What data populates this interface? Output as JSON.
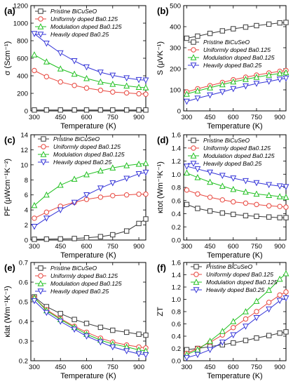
{
  "series_style": [
    {
      "color": "#3a3a3a",
      "marker": "square"
    },
    {
      "color": "#e8473f",
      "marker": "circle"
    },
    {
      "color": "#20c020",
      "marker": "triangle-up"
    },
    {
      "color": "#3535d8",
      "marker": "triangle-down"
    }
  ],
  "chart_data": [
    {
      "type": "line",
      "panel_label": "(a)",
      "ylabel": "σ (Scm⁻¹)",
      "xlabel": "Temperature (K)",
      "xlim": [
        280,
        940
      ],
      "ylim": [
        0,
        1200
      ],
      "xticks": [
        300,
        450,
        600,
        750,
        900
      ],
      "yticks": [
        0,
        200,
        400,
        600,
        800,
        1000,
        1200
      ],
      "legend_position": "top-right",
      "x": [
        300,
        370,
        450,
        530,
        600,
        680,
        750,
        830,
        900,
        940
      ],
      "series": [
        {
          "name": "Pristine BiCuSeO",
          "values": [
            10,
            10,
            10,
            10,
            10,
            10,
            10,
            10,
            10,
            10
          ]
        },
        {
          "name": "Uniformly doped Ba0.125",
          "values": [
            460,
            390,
            330,
            290,
            260,
            235,
            215,
            205,
            195,
            190
          ]
        },
        {
          "name": "Modulation doped Ba0.125",
          "values": [
            640,
            560,
            480,
            420,
            370,
            330,
            305,
            285,
            270,
            265
          ]
        },
        {
          "name": "Heavily doped Ba0.25",
          "values": [
            880,
            770,
            660,
            570,
            500,
            440,
            405,
            375,
            355,
            350
          ]
        }
      ]
    },
    {
      "type": "line",
      "panel_label": "(b)",
      "ylabel": "S (μVK⁻¹)",
      "xlabel": "Temperature (K)",
      "xlim": [
        280,
        940
      ],
      "ylim": [
        0,
        500
      ],
      "xticks": [
        300,
        450,
        600,
        750,
        900
      ],
      "yticks": [
        0,
        100,
        200,
        300,
        400,
        500
      ],
      "legend_position": "center-right",
      "x": [
        300,
        370,
        450,
        530,
        600,
        680,
        750,
        830,
        900,
        940
      ],
      "series": [
        {
          "name": "Pristine BiCuSeO",
          "values": [
            345,
            355,
            368,
            380,
            390,
            398,
            405,
            412,
            418,
            420
          ]
        },
        {
          "name": "Uniformly doped Ba0.125",
          "values": [
            90,
            105,
            120,
            135,
            148,
            160,
            170,
            180,
            188,
            192
          ]
        },
        {
          "name": "Modulation doped Ba0.125",
          "values": [
            80,
            95,
            110,
            125,
            138,
            150,
            160,
            170,
            178,
            182
          ]
        },
        {
          "name": "Heavily doped Ba0.25",
          "values": [
            45,
            60,
            75,
            90,
            105,
            118,
            130,
            140,
            150,
            155
          ]
        }
      ]
    },
    {
      "type": "line",
      "panel_label": "(c)",
      "ylabel": "PF (μWcm⁻¹K⁻²)",
      "xlabel": "Temperature (K)",
      "xlim": [
        280,
        940
      ],
      "ylim": [
        0,
        14
      ],
      "xticks": [
        300,
        450,
        600,
        750,
        900
      ],
      "yticks": [
        0,
        2,
        4,
        6,
        8,
        10,
        12,
        14
      ],
      "legend_position": "top-left",
      "x": [
        300,
        370,
        450,
        530,
        600,
        680,
        750,
        830,
        900,
        940
      ],
      "series": [
        {
          "name": "Pristine BiCuSeO",
          "values": [
            0.1,
            0.12,
            0.15,
            0.2,
            0.3,
            0.45,
            0.7,
            1.2,
            2.2,
            2.8
          ]
        },
        {
          "name": "Uniformly doped Ba0.125",
          "values": [
            2.9,
            3.7,
            4.5,
            5.0,
            5.4,
            5.7,
            5.9,
            6.0,
            6.1,
            6.1
          ]
        },
        {
          "name": "Modulation doped Ba0.125",
          "values": [
            4.6,
            6.0,
            7.3,
            8.1,
            8.7,
            9.2,
            9.6,
            9.9,
            10.1,
            10.2
          ]
        },
        {
          "name": "Heavily doped Ba0.25",
          "values": [
            1.8,
            2.9,
            4.0,
            5.0,
            6.0,
            6.9,
            7.6,
            8.2,
            8.8,
            9.0
          ]
        }
      ]
    },
    {
      "type": "line",
      "panel_label": "(d)",
      "ylabel": "κtot (Wm⁻¹K⁻¹)",
      "xlabel": "Temperature (K)",
      "xlim": [
        280,
        940
      ],
      "ylim": [
        0.0,
        1.6
      ],
      "xticks": [
        300,
        450,
        600,
        750,
        900
      ],
      "yticks": [
        0.0,
        0.2,
        0.4,
        0.6,
        0.8,
        1.0,
        1.2,
        1.4,
        1.6
      ],
      "legend_position": "top-right",
      "x": [
        300,
        370,
        450,
        530,
        600,
        680,
        750,
        830,
        900,
        940
      ],
      "series": [
        {
          "name": "Pristine BiCuSeO",
          "values": [
            0.54,
            0.48,
            0.44,
            0.41,
            0.39,
            0.37,
            0.36,
            0.35,
            0.34,
            0.34
          ]
        },
        {
          "name": "Uniformly doped Ba0.125",
          "values": [
            0.76,
            0.7,
            0.65,
            0.61,
            0.58,
            0.56,
            0.54,
            0.52,
            0.51,
            0.5
          ]
        },
        {
          "name": "Modulation doped Ba0.125",
          "values": [
            1.02,
            0.95,
            0.88,
            0.82,
            0.77,
            0.73,
            0.7,
            0.68,
            0.66,
            0.65
          ]
        },
        {
          "name": "Heavily doped Ba0.25",
          "values": [
            1.12,
            1.08,
            1.03,
            0.98,
            0.94,
            0.9,
            0.87,
            0.84,
            0.82,
            0.81
          ]
        }
      ]
    },
    {
      "type": "line",
      "panel_label": "(e)",
      "ylabel": "κlat (Wm⁻¹K⁻¹)",
      "xlabel": "Temperature (K)",
      "xlim": [
        280,
        940
      ],
      "ylim": [
        0.2,
        0.7
      ],
      "xticks": [
        300,
        450,
        600,
        750,
        900
      ],
      "yticks": [
        0.2,
        0.3,
        0.4,
        0.5,
        0.6,
        0.7
      ],
      "legend_position": "top-right",
      "x": [
        300,
        370,
        450,
        530,
        600,
        680,
        750,
        830,
        900,
        940
      ],
      "series": [
        {
          "name": "Pristine BiCuSeO",
          "values": [
            0.525,
            0.475,
            0.44,
            0.41,
            0.39,
            0.37,
            0.355,
            0.345,
            0.335,
            0.33
          ]
        },
        {
          "name": "Uniformly doped Ba0.125",
          "values": [
            0.52,
            0.46,
            0.415,
            0.375,
            0.345,
            0.315,
            0.295,
            0.28,
            0.27,
            0.265
          ]
        },
        {
          "name": "Modulation doped Ba0.125",
          "values": [
            0.52,
            0.455,
            0.41,
            0.37,
            0.335,
            0.305,
            0.285,
            0.27,
            0.255,
            0.25
          ]
        },
        {
          "name": "Heavily doped Ba0.25",
          "values": [
            0.505,
            0.445,
            0.4,
            0.36,
            0.325,
            0.295,
            0.27,
            0.25,
            0.235,
            0.23
          ]
        }
      ]
    },
    {
      "type": "line",
      "panel_label": "(f)",
      "ylabel": "ZT",
      "xlabel": "Temperature (K)",
      "xlim": [
        280,
        940
      ],
      "ylim": [
        0.0,
        1.6
      ],
      "xticks": [
        300,
        450,
        600,
        750,
        900
      ],
      "yticks": [
        0.0,
        0.2,
        0.4,
        0.6,
        0.8,
        1.0,
        1.2,
        1.4,
        1.6
      ],
      "legend_position": "top-left",
      "x": [
        300,
        370,
        450,
        530,
        600,
        680,
        750,
        830,
        900,
        940
      ],
      "series": [
        {
          "name": "Pristine BiCuSeO",
          "values": [
            0.18,
            0.2,
            0.23,
            0.26,
            0.29,
            0.33,
            0.37,
            0.41,
            0.45,
            0.47
          ]
        },
        {
          "name": "Uniformly doped Ba0.125",
          "values": [
            0.12,
            0.2,
            0.3,
            0.42,
            0.54,
            0.68,
            0.8,
            0.95,
            1.07,
            1.12
          ]
        },
        {
          "name": "Modulation doped Ba0.125",
          "values": [
            0.1,
            0.18,
            0.32,
            0.48,
            0.64,
            0.8,
            0.97,
            1.15,
            1.33,
            1.42
          ]
        },
        {
          "name": "Heavily doped Ba0.25",
          "values": [
            0.05,
            0.1,
            0.18,
            0.3,
            0.42,
            0.56,
            0.7,
            0.84,
            0.98,
            1.02
          ]
        }
      ]
    }
  ]
}
